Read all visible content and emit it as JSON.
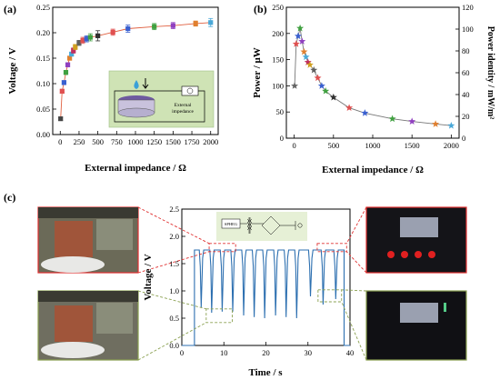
{
  "panels": {
    "a": {
      "letter": "(a)"
    },
    "b": {
      "letter": "(b)"
    },
    "c": {
      "letter": "(c)"
    }
  },
  "inset_a": {
    "label_line1": "External",
    "label_line2": "impedance",
    "bg_color": "#cfe3b5"
  },
  "inset_c": {
    "label": "SPHEG",
    "bg_color": "#e6f0d6"
  },
  "chart_data": [
    {
      "id": "a",
      "type": "scatter",
      "xlabel": "External impedance / Ω",
      "ylabel": "Voltage / V",
      "xlim": [
        -100,
        2100
      ],
      "ylim": [
        0.0,
        0.25
      ],
      "xticks": [
        "0",
        "250",
        "500",
        "750",
        "1000",
        "1250",
        "1500",
        "1750",
        "2000"
      ],
      "yticks": [
        "0.00",
        "0.05",
        "0.10",
        "0.15",
        "0.20",
        "0.25"
      ],
      "x": [
        5,
        25,
        50,
        75,
        100,
        125,
        150,
        175,
        200,
        250,
        300,
        350,
        400,
        500,
        700,
        900,
        1250,
        1500,
        1800,
        2000
      ],
      "y": [
        0.031,
        0.085,
        0.102,
        0.122,
        0.137,
        0.15,
        0.158,
        0.165,
        0.172,
        0.18,
        0.185,
        0.188,
        0.191,
        0.194,
        0.201,
        0.208,
        0.212,
        0.214,
        0.218,
        0.22
      ],
      "error": [
        0.003,
        0.004,
        0.004,
        0.004,
        0.004,
        0.004,
        0.004,
        0.005,
        0.005,
        0.005,
        0.006,
        0.006,
        0.007,
        0.01,
        0.006,
        0.007,
        0.006,
        0.006,
        0.005,
        0.008
      ],
      "colors": [
        "#444444",
        "#e05050",
        "#3a60d0",
        "#40a040",
        "#9040c0",
        "#e08030",
        "#4aa8d8",
        "#c03060",
        "#d0a020",
        "#606060",
        "#e05050",
        "#3a60d0",
        "#40a040",
        "#303030",
        "#e05050",
        "#3a60d0",
        "#40a040",
        "#9040c0",
        "#e08030",
        "#4aa8d8"
      ],
      "line_color": "#e06040"
    },
    {
      "id": "b",
      "type": "scatter",
      "xlabel": "External impedance / Ω",
      "ylabel": "Power / μW",
      "ylabel_right": "Power identity / mW/m²",
      "xlim": [
        -100,
        2100
      ],
      "ylim": [
        0,
        250
      ],
      "ylim_right": [
        0,
        120
      ],
      "xticks": [
        "0",
        "500",
        "1000",
        "1500",
        "2000"
      ],
      "yticks": [
        "0",
        "50",
        "100",
        "150",
        "200",
        "250"
      ],
      "yticks_right": [
        "0",
        "20",
        "40",
        "60",
        "80",
        "100",
        "120"
      ],
      "x": [
        5,
        25,
        50,
        75,
        100,
        125,
        150,
        175,
        200,
        250,
        300,
        350,
        400,
        500,
        700,
        900,
        1250,
        1500,
        1800,
        2000
      ],
      "y": [
        100,
        180,
        195,
        210,
        185,
        165,
        155,
        145,
        140,
        130,
        115,
        100,
        90,
        78,
        58,
        48,
        37,
        32,
        27,
        24
      ],
      "colors": [
        "#666666",
        "#e05050",
        "#3a60d0",
        "#40a040",
        "#9040c0",
        "#e08030",
        "#4aa8d8",
        "#c03060",
        "#d0a020",
        "#606060",
        "#e05050",
        "#3a60d0",
        "#40a040",
        "#303030",
        "#e05050",
        "#3a60d0",
        "#40a040",
        "#9040c0",
        "#e08030",
        "#4aa8d8"
      ]
    },
    {
      "id": "c",
      "type": "line",
      "xlabel": "Time / s",
      "ylabel": "Voltage / V",
      "xlim": [
        0,
        40
      ],
      "ylim": [
        0.0,
        2.5
      ],
      "xticks": [
        "0",
        "10",
        "20",
        "30",
        "40"
      ],
      "yticks": [
        "0.0",
        "0.5",
        "1.0",
        "1.5",
        "2.0",
        "2.5"
      ],
      "baseline": 0.0,
      "high_level": 1.75,
      "signal_window": [
        3.0,
        38.6
      ],
      "dips": [
        {
          "t": 4.6,
          "min": 0.7
        },
        {
          "t": 7.1,
          "min": 0.6
        },
        {
          "t": 9.6,
          "min": 0.62
        },
        {
          "t": 12.1,
          "min": 0.62
        },
        {
          "t": 14.7,
          "min": 0.55
        },
        {
          "t": 17.2,
          "min": 0.52
        },
        {
          "t": 19.7,
          "min": 0.5
        },
        {
          "t": 22.3,
          "min": 0.55
        },
        {
          "t": 24.8,
          "min": 0.52
        },
        {
          "t": 27.3,
          "min": 0.5
        },
        {
          "t": 30.6,
          "min": 0.9
        },
        {
          "t": 33.6,
          "min": 0.75
        },
        {
          "t": 36.6,
          "min": 0.85
        }
      ],
      "line_color": "#2c6fb0",
      "annotation_color_top": "#e03030",
      "annotation_color_bottom": "#8aa050"
    }
  ]
}
